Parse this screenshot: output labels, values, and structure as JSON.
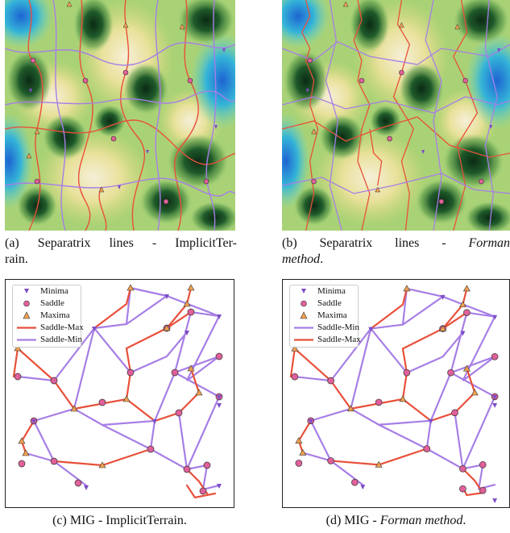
{
  "captions": {
    "a": {
      "prefix": "(a) Separatrix lines - ImplicitTer-",
      "line2": "rain."
    },
    "b": {
      "prefix": "(b) Separatrix lines -",
      "italic": "Forman",
      "line2_italic": "method",
      "line2_tail": "."
    },
    "c": {
      "prefix": "(c) MIG - ImplicitTerrain."
    },
    "d": {
      "prefix": "(d) MIG -",
      "italic": "Forman method",
      "tail": "."
    }
  },
  "legend_c": [
    {
      "symbol": "minima",
      "label": "Minima"
    },
    {
      "symbol": "saddle",
      "label": "Saddle"
    },
    {
      "symbol": "maxima",
      "label": "Maxima"
    },
    {
      "symbol": "saddle-max-line",
      "label": "Saddle-Max"
    },
    {
      "symbol": "saddle-min-line",
      "label": "Saddle-Min"
    }
  ],
  "legend_d": [
    {
      "symbol": "minima",
      "label": "Minima"
    },
    {
      "symbol": "saddle",
      "label": "Saddle"
    },
    {
      "symbol": "maxima",
      "label": "Maxima"
    },
    {
      "symbol": "saddle-min-line",
      "label": "Saddle-Min"
    },
    {
      "symbol": "saddle-max-line",
      "label": "Saddle-Max"
    }
  ],
  "colors": {
    "saddle_max": "#e8503a",
    "saddle_min": "#a77ee6",
    "minima": "#7c4dc6",
    "saddle": "#e0609a",
    "maxima": "#f0a050"
  }
}
